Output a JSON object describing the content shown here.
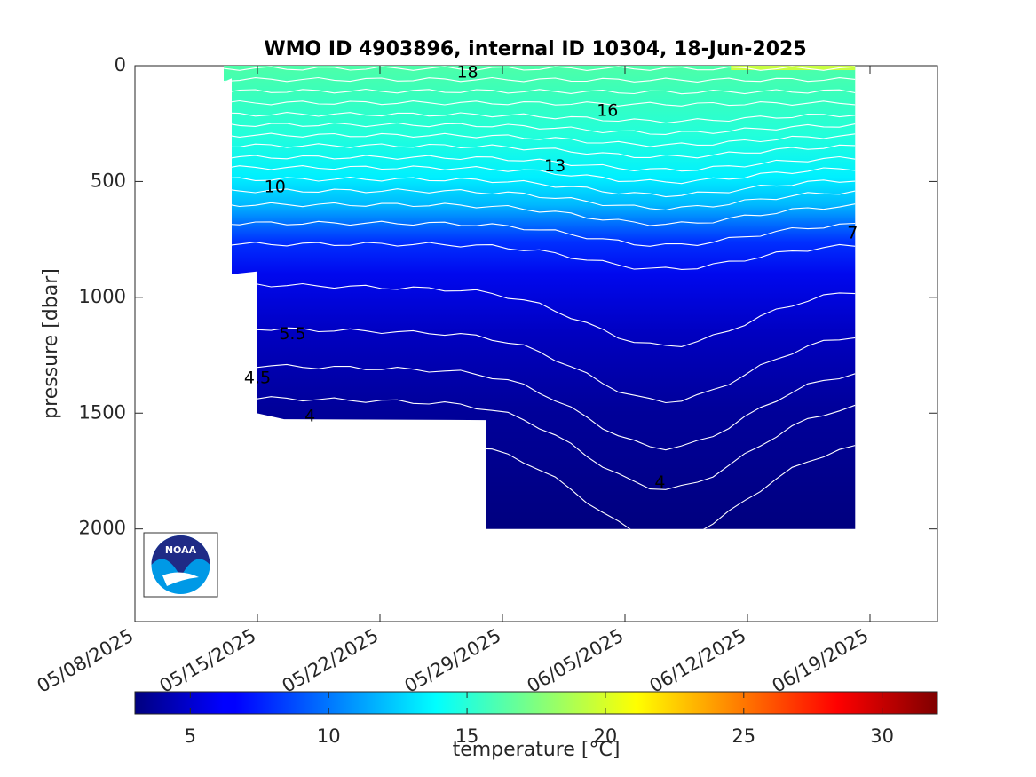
{
  "chart_data": {
    "type": "heatmap",
    "title": "WMO ID 4903896, internal ID 10304, 18-Jun-2025",
    "xlabel": "",
    "ylabel": "pressure [dbar]",
    "x_tick_labels": [
      "05/08/2025",
      "05/15/2025",
      "05/22/2025",
      "05/29/2025",
      "06/05/2025",
      "06/12/2025",
      "06/19/2025"
    ],
    "y_ticks": [
      0,
      500,
      1000,
      1500,
      2000
    ],
    "ylim": [
      0,
      2400
    ],
    "y_reversed": true,
    "colorbar": {
      "label": "temperature [°C]",
      "ticks": [
        5,
        10,
        15,
        20,
        25,
        30
      ],
      "range": [
        3,
        32
      ],
      "colormap": "jet"
    },
    "contour_labels": [
      {
        "text": "18",
        "date": "2025-05-27",
        "pressure": 30
      },
      {
        "text": "16",
        "date": "2025-06-04",
        "pressure": 195
      },
      {
        "text": "13",
        "date": "2025-06-01",
        "pressure": 435
      },
      {
        "text": "10",
        "date": "2025-05-16",
        "pressure": 525
      },
      {
        "text": "7",
        "date": "2025-06-18",
        "pressure": 725
      },
      {
        "text": "5.5",
        "date": "2025-05-17",
        "pressure": 1160
      },
      {
        "text": "4.5",
        "date": "2025-05-15",
        "pressure": 1350
      },
      {
        "text": "4",
        "date": "2025-05-18",
        "pressure": 1515
      },
      {
        "text": "4",
        "date": "2025-06-07",
        "pressure": 1800
      }
    ],
    "profile_columns": [
      {
        "date": "2025-05-13",
        "max_pressure": 900
      },
      {
        "date": "2025-05-15",
        "max_pressure": 1500
      },
      {
        "date": "2025-05-20",
        "max_pressure": 1530
      },
      {
        "date": "2025-05-28",
        "max_pressure": 2000
      },
      {
        "date": "2025-06-18",
        "max_pressure": 2000
      }
    ],
    "grid": false,
    "legend": "colorbar-bottom",
    "colors": {
      "surface": "#4dffa8",
      "deep": "#00007f"
    }
  },
  "logo": {
    "text": "NOAA"
  }
}
